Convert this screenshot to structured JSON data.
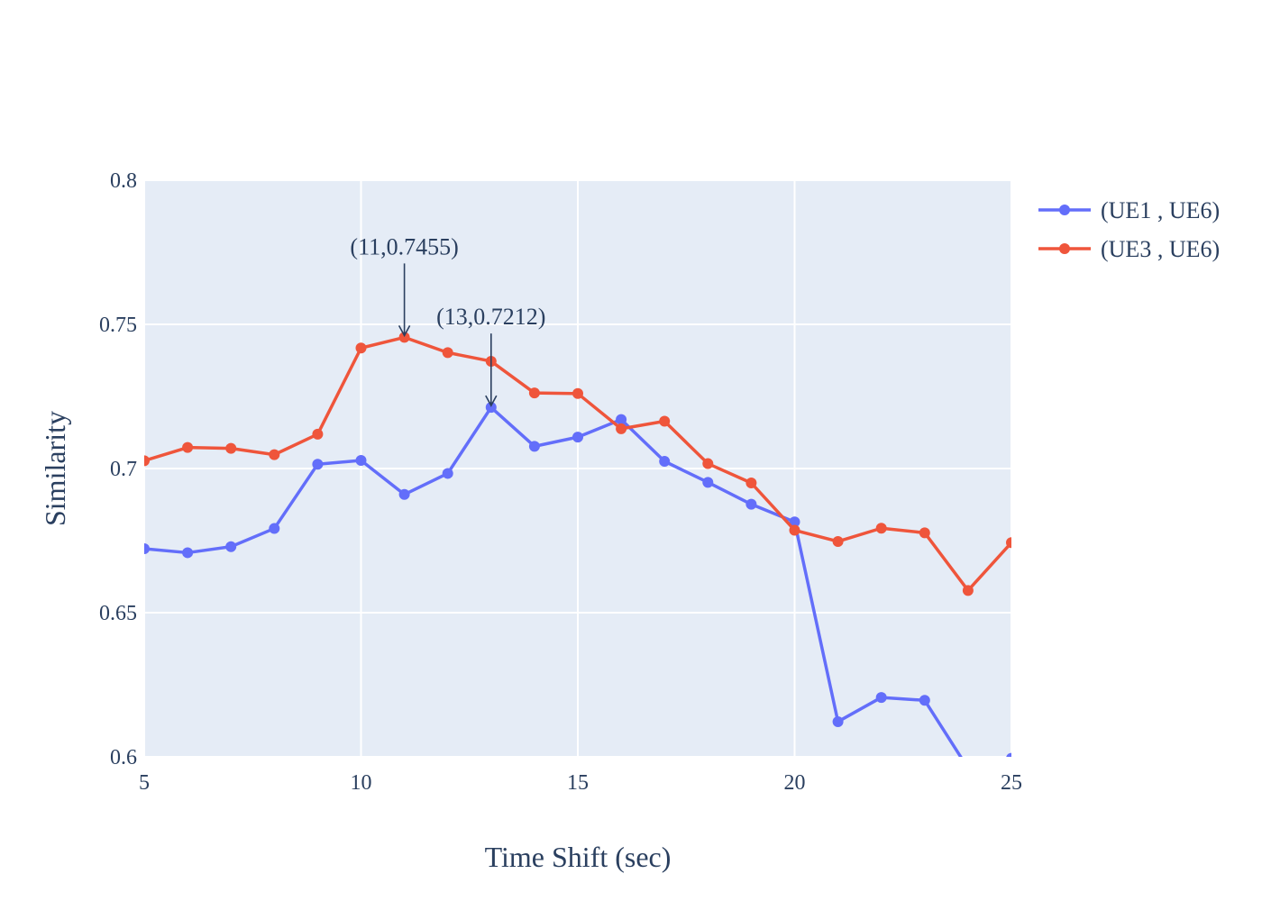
{
  "chart_data": {
    "type": "line",
    "xlabel": "Time Shift (sec)",
    "ylabel": "Similarity",
    "xlim": [
      5,
      25
    ],
    "ylim": [
      0.6,
      0.8
    ],
    "x_ticks": [
      5,
      10,
      15,
      20,
      25
    ],
    "x_tick_labels": [
      "5",
      "10",
      "15",
      "20",
      "25"
    ],
    "y_ticks": [
      0.6,
      0.65,
      0.7,
      0.75,
      0.8
    ],
    "y_tick_labels": [
      "0.6",
      "0.65",
      "0.7",
      "0.75",
      "0.8"
    ],
    "grid": true,
    "legend_position": "top-right-outside",
    "plot_background": "#e5ecf6",
    "x": [
      5,
      6,
      7,
      8,
      9,
      10,
      11,
      12,
      13,
      14,
      15,
      16,
      17,
      18,
      19,
      20,
      21,
      22,
      23,
      24,
      25
    ],
    "series": [
      {
        "name": "(UE1 , UE6)",
        "color": "#636efa",
        "values": [
          0.6722,
          0.6708,
          0.6729,
          0.6792,
          0.7015,
          0.7028,
          0.691,
          0.6983,
          0.7212,
          0.7077,
          0.7109,
          0.717,
          0.7025,
          0.6952,
          0.6876,
          0.6815,
          0.6122,
          0.6206,
          0.6196,
          0.596,
          0.5995
        ]
      },
      {
        "name": "(UE3 , UE6)",
        "color": "#ef553b",
        "values": [
          0.7027,
          0.7073,
          0.707,
          0.7048,
          0.7119,
          0.7418,
          0.7455,
          0.7402,
          0.7372,
          0.7262,
          0.726,
          0.7138,
          0.7164,
          0.7017,
          0.695,
          0.6786,
          0.6747,
          0.6793,
          0.6777,
          0.6577,
          0.6743
        ]
      }
    ],
    "annotations": [
      {
        "x": 11,
        "y": 0.7455,
        "text": "(11,0.7455)"
      },
      {
        "x": 13,
        "y": 0.7212,
        "text": "(13,0.7212)"
      }
    ]
  }
}
